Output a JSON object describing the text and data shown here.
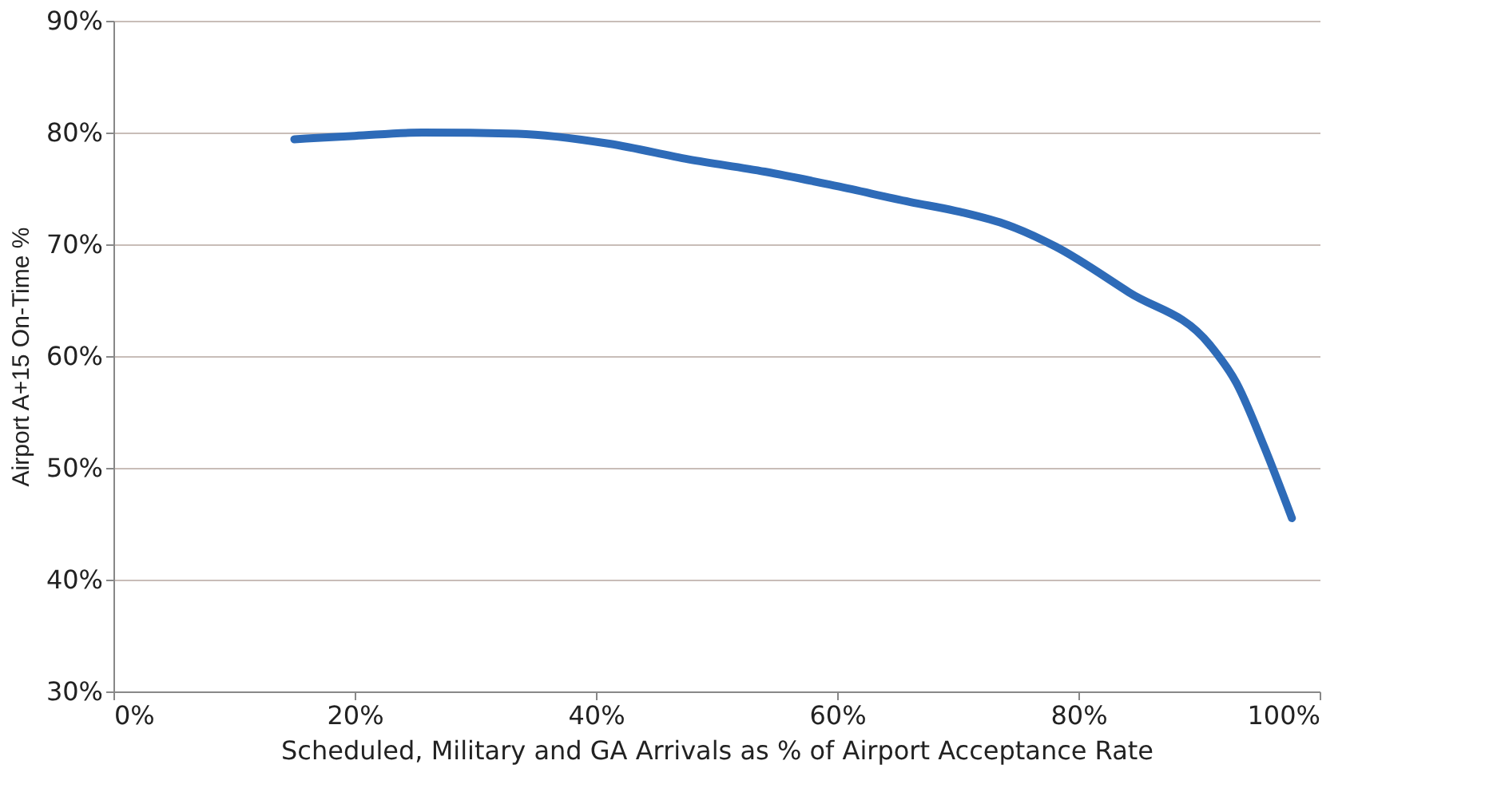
{
  "chart_data": {
    "type": "line",
    "xlabel": "Scheduled, Military and GA Arrivals as % of Airport Acceptance Rate",
    "ylabel": "Airport A+15 On-Time %",
    "series": [
      {
        "color": "#2e6bb8",
        "x": [
          15.0,
          20.0,
          25.6,
          33.5,
          41.1,
          47.7,
          54.0,
          60.0,
          66.0,
          70.2,
          74.2,
          78.1,
          84.2,
          90.9,
          93.1,
          95.4,
          97.7
        ],
        "values": [
          79.4,
          79.7,
          80.0,
          79.9,
          79.0,
          77.6,
          76.5,
          75.2,
          73.8,
          72.9,
          71.7,
          69.8,
          65.7,
          61.0,
          57.6,
          51.9,
          45.5
        ]
      }
    ],
    "xlim": [
      0,
      100
    ],
    "ylim": [
      30,
      90
    ],
    "xticks": [
      {
        "value": 0,
        "label": "0%"
      },
      {
        "value": 20,
        "label": "20%"
      },
      {
        "value": 40,
        "label": "40%"
      },
      {
        "value": 60,
        "label": "60%"
      },
      {
        "value": 80,
        "label": "80%"
      },
      {
        "value": 100,
        "label": "100%"
      }
    ],
    "yticks": [
      {
        "value": 30,
        "label": "30%"
      },
      {
        "value": 40,
        "label": "40%"
      },
      {
        "value": 50,
        "label": "50%"
      },
      {
        "value": 60,
        "label": "60%"
      },
      {
        "value": 70,
        "label": "70%"
      },
      {
        "value": 80,
        "label": "80%"
      },
      {
        "value": 90,
        "label": "90%"
      }
    ],
    "grid": "y",
    "marker": "none",
    "line_style": "solid"
  }
}
